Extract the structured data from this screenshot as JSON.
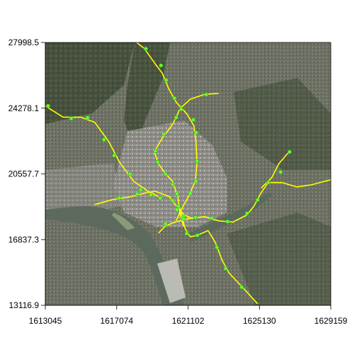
{
  "chart_data": {
    "type": "map",
    "title": "",
    "xlabel": "",
    "ylabel": "",
    "xlim": [
      1613045,
      1629159
    ],
    "ylim": [
      13116.9,
      27998.5
    ],
    "x_ticks": [
      "1613045",
      "1617074",
      "1621102",
      "1625130",
      "1629159"
    ],
    "y_ticks": [
      "13116.9",
      "16837.3",
      "20557.7",
      "24278.1",
      "27998.5"
    ],
    "x_tick_values": [
      1613045,
      1617074,
      1621102,
      1625130,
      1629159
    ],
    "y_tick_values": [
      13116.9,
      16837.3,
      20557.7,
      24278.1,
      27998.5
    ],
    "basemap": "aerial imagery",
    "line_color": "#ffff00",
    "station_color": "#66ff33",
    "lines": [
      [
        [
          1613045,
          24410
        ],
        [
          1614050,
          23770
        ],
        [
          1615030,
          23770
        ],
        [
          1615830,
          23480
        ],
        [
          1616630,
          22380
        ],
        [
          1617230,
          21220
        ],
        [
          1618030,
          20140
        ],
        [
          1618830,
          19580
        ],
        [
          1619430,
          19280
        ]
      ],
      [
        [
          1618200,
          28000
        ],
        [
          1618630,
          27660
        ],
        [
          1619230,
          26810
        ],
        [
          1619630,
          26280
        ],
        [
          1620030,
          25340
        ],
        [
          1620430,
          24620
        ],
        [
          1621030,
          23960
        ],
        [
          1621430,
          23290
        ],
        [
          1621550,
          22350
        ],
        [
          1621610,
          21210
        ],
        [
          1621510,
          20150
        ],
        [
          1621170,
          19360
        ],
        [
          1620830,
          18740
        ],
        [
          1620430,
          17910
        ]
      ],
      [
        [
          1622830,
          25120
        ],
        [
          1622030,
          25060
        ],
        [
          1621230,
          24790
        ],
        [
          1620670,
          24280
        ],
        [
          1620230,
          23360
        ],
        [
          1619630,
          22560
        ],
        [
          1619190,
          21820
        ],
        [
          1619430,
          21130
        ],
        [
          1619830,
          20570
        ],
        [
          1620230,
          20140
        ],
        [
          1620530,
          19230
        ],
        [
          1620630,
          18440
        ],
        [
          1620830,
          17620
        ]
      ],
      [
        [
          1615830,
          18820
        ],
        [
          1616830,
          19100
        ],
        [
          1617830,
          19260
        ],
        [
          1618630,
          19460
        ],
        [
          1619230,
          19580
        ],
        [
          1620030,
          19280
        ],
        [
          1620430,
          18760
        ],
        [
          1620830,
          18280
        ],
        [
          1621230,
          18080
        ]
      ],
      [
        [
          1619430,
          17200
        ],
        [
          1619830,
          17620
        ],
        [
          1620430,
          17850
        ],
        [
          1621230,
          18040
        ],
        [
          1622030,
          18140
        ],
        [
          1622830,
          17900
        ],
        [
          1623630,
          17830
        ],
        [
          1624430,
          18230
        ],
        [
          1624830,
          18750
        ],
        [
          1625230,
          19500
        ],
        [
          1625630,
          20070
        ],
        [
          1626430,
          20060
        ],
        [
          1627230,
          19820
        ],
        [
          1628030,
          19930
        ],
        [
          1629159,
          20230
        ]
      ],
      [
        [
          1620630,
          18640
        ],
        [
          1620930,
          17480
        ],
        [
          1621230,
          16990
        ],
        [
          1621630,
          17080
        ],
        [
          1622230,
          17350
        ],
        [
          1622630,
          16700
        ],
        [
          1623030,
          15660
        ],
        [
          1623430,
          14930
        ],
        [
          1624230,
          14080
        ],
        [
          1625030,
          13200
        ]
      ],
      [
        [
          1626830,
          21840
        ],
        [
          1626230,
          21140
        ],
        [
          1625830,
          20350
        ],
        [
          1625230,
          19760
        ]
      ]
    ],
    "stations": [
      [
        1613195,
        24410
      ],
      [
        1614510,
        23700
      ],
      [
        1615430,
        23740
      ],
      [
        1616350,
        22490
      ],
      [
        1616930,
        21600
      ],
      [
        1617830,
        20540
      ],
      [
        1618430,
        19650
      ],
      [
        1619000,
        19360
      ],
      [
        1618720,
        27640
      ],
      [
        1619570,
        26700
      ],
      [
        1619870,
        25870
      ],
      [
        1620330,
        24850
      ],
      [
        1620720,
        24220
      ],
      [
        1621400,
        23620
      ],
      [
        1621560,
        22900
      ],
      [
        1621600,
        21280
      ],
      [
        1621540,
        20150
      ],
      [
        1621230,
        19450
      ],
      [
        1622130,
        25050
      ],
      [
        1620430,
        23750
      ],
      [
        1619730,
        22800
      ],
      [
        1619260,
        21850
      ],
      [
        1619390,
        21230
      ],
      [
        1619830,
        20540
      ],
      [
        1620230,
        19960
      ],
      [
        1620470,
        19430
      ],
      [
        1620570,
        18720
      ],
      [
        1620850,
        18150
      ],
      [
        1617200,
        19190
      ],
      [
        1618230,
        19420
      ],
      [
        1619530,
        19180
      ],
      [
        1620230,
        19050
      ],
      [
        1620470,
        18530
      ],
      [
        1619830,
        17720
      ],
      [
        1620830,
        18020
      ],
      [
        1621530,
        18090
      ],
      [
        1622430,
        18050
      ],
      [
        1623330,
        17860
      ],
      [
        1624430,
        18320
      ],
      [
        1625030,
        19080
      ],
      [
        1625630,
        20070
      ],
      [
        1621030,
        17180
      ],
      [
        1621630,
        17080
      ],
      [
        1622730,
        16400
      ],
      [
        1623230,
        15200
      ],
      [
        1624130,
        14140
      ],
      [
        1626330,
        20660
      ],
      [
        1626830,
        21800
      ]
    ]
  }
}
